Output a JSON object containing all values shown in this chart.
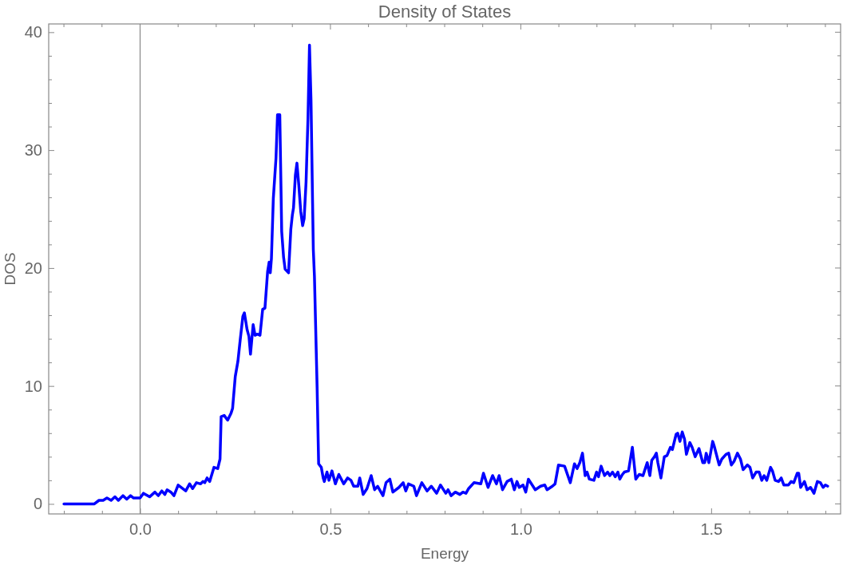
{
  "chart_data": {
    "type": "line",
    "title": "Density of States",
    "xlabel": "Energy",
    "ylabel": "DOS",
    "xlim": [
      -0.24,
      1.84
    ],
    "ylim": [
      -0.85,
      40.7
    ],
    "xticks": [
      {
        "value": -0.2,
        "label": null
      },
      {
        "value": -0.1,
        "label": null
      },
      {
        "value": 0,
        "label": "0.0"
      },
      {
        "value": 0.1,
        "label": null
      },
      {
        "value": 0.2,
        "label": null
      },
      {
        "value": 0.3,
        "label": null
      },
      {
        "value": 0.4,
        "label": null
      },
      {
        "value": 0.5,
        "label": "0.5"
      },
      {
        "value": 0.6,
        "label": null
      },
      {
        "value": 0.7,
        "label": null
      },
      {
        "value": 0.8,
        "label": null
      },
      {
        "value": 0.9,
        "label": null
      },
      {
        "value": 1.0,
        "label": "1.0"
      },
      {
        "value": 1.1,
        "label": null
      },
      {
        "value": 1.2,
        "label": null
      },
      {
        "value": 1.3,
        "label": null
      },
      {
        "value": 1.4,
        "label": null
      },
      {
        "value": 1.5,
        "label": "1.5"
      },
      {
        "value": 1.6,
        "label": null
      },
      {
        "value": 1.7,
        "label": null
      },
      {
        "value": 1.8,
        "label": null
      }
    ],
    "yticks": [
      0,
      {
        "value": 2,
        "label": null
      },
      {
        "value": 4,
        "label": null
      },
      {
        "value": 6,
        "label": null
      },
      {
        "value": 8,
        "label": null
      },
      10,
      {
        "value": 12,
        "label": null
      },
      {
        "value": 14,
        "label": null
      },
      {
        "value": 16,
        "label": null
      },
      {
        "value": 18,
        "label": null
      },
      20,
      {
        "value": 22,
        "label": null
      },
      {
        "value": 24,
        "label": null
      },
      {
        "value": 26,
        "label": null
      },
      {
        "value": 28,
        "label": null
      },
      30,
      {
        "value": 32,
        "label": null
      },
      {
        "value": 34,
        "label": null
      },
      {
        "value": 36,
        "label": null
      },
      {
        "value": 38,
        "label": null
      },
      40
    ],
    "ref_lines": [
      {
        "axis": "x",
        "value": 0,
        "color": "#777777"
      }
    ],
    "x": [
      -0.2,
      -0.12,
      -0.108,
      -0.097,
      -0.087,
      -0.076,
      -0.066,
      -0.057,
      -0.045,
      -0.035,
      -0.025,
      -0.017,
      0.0,
      0.009,
      0.025,
      0.039,
      0.048,
      0.057,
      0.065,
      0.071,
      0.081,
      0.089,
      0.1,
      0.12,
      0.13,
      0.138,
      0.148,
      0.159,
      0.165,
      0.17,
      0.176,
      0.183,
      0.194,
      0.204,
      0.21,
      0.213,
      0.221,
      0.23,
      0.239,
      0.243,
      0.25,
      0.257,
      0.263,
      0.27,
      0.274,
      0.281,
      0.286,
      0.29,
      0.297,
      0.302,
      0.308,
      0.315,
      0.322,
      0.328,
      0.335,
      0.339,
      0.342,
      0.345,
      0.35,
      0.357,
      0.361,
      0.367,
      0.372,
      0.377,
      0.381,
      0.39,
      0.396,
      0.4,
      0.403,
      0.408,
      0.412,
      0.417,
      0.422,
      0.427,
      0.431,
      0.436,
      0.441,
      0.445,
      0.449,
      0.455,
      0.458,
      0.465,
      0.469,
      0.476,
      0.481,
      0.484,
      0.491,
      0.496,
      0.504,
      0.513,
      0.522,
      0.535,
      0.545,
      0.554,
      0.561,
      0.572,
      0.577,
      0.586,
      0.596,
      0.607,
      0.616,
      0.624,
      0.638,
      0.646,
      0.656,
      0.664,
      0.68,
      0.691,
      0.698,
      0.705,
      0.719,
      0.726,
      0.74,
      0.754,
      0.765,
      0.779,
      0.789,
      0.803,
      0.809,
      0.817,
      0.828,
      0.84,
      0.848,
      0.856,
      0.863,
      0.877,
      0.895,
      0.902,
      0.914,
      0.926,
      0.936,
      0.943,
      0.952,
      0.964,
      0.975,
      0.983,
      0.99,
      0.996,
      1.006,
      1.013,
      1.02,
      1.038,
      1.052,
      1.063,
      1.069,
      1.083,
      1.09,
      1.099,
      1.115,
      1.13,
      1.141,
      1.148,
      1.155,
      1.162,
      1.169,
      1.174,
      1.18,
      1.192,
      1.199,
      1.204,
      1.211,
      1.22,
      1.228,
      1.234,
      1.241,
      1.248,
      1.255,
      1.26,
      1.267,
      1.272,
      1.283,
      1.288,
      1.293,
      1.302,
      1.311,
      1.321,
      1.328,
      1.332,
      1.339,
      1.344,
      1.351,
      1.356,
      1.36,
      1.368,
      1.377,
      1.384,
      1.393,
      1.398,
      1.408,
      1.412,
      1.418,
      1.424,
      1.43,
      1.435,
      1.444,
      1.45,
      1.458,
      1.468,
      1.478,
      1.483,
      1.487,
      1.494,
      1.504,
      1.508,
      1.521,
      1.528,
      1.539,
      1.546,
      1.553,
      1.56,
      1.569,
      1.577,
      1.584,
      1.595,
      1.602,
      1.609,
      1.618,
      1.626,
      1.633,
      1.639,
      1.646,
      1.656,
      1.661,
      1.668,
      1.677,
      1.684,
      1.691,
      1.703,
      1.71,
      1.717,
      1.726,
      1.73,
      1.735,
      1.745,
      1.752,
      1.761,
      1.77,
      1.779,
      1.787,
      1.794,
      1.8,
      1.806
    ],
    "series": [
      {
        "color": "#0000ff",
        "values": [
          0,
          0,
          0.3,
          0.3,
          0.5,
          0.3,
          0.6,
          0.3,
          0.7,
          0.4,
          0.7,
          0.5,
          0.5,
          0.9,
          0.6,
          1.0,
          0.7,
          1.1,
          0.8,
          1.2,
          1.0,
          0.7,
          1.6,
          1.1,
          1.7,
          1.3,
          1.8,
          1.7,
          1.9,
          1.8,
          2.2,
          1.9,
          3.1,
          3.0,
          3.8,
          7.4,
          7.5,
          7.1,
          7.7,
          8.1,
          10.8,
          12.1,
          13.9,
          15.9,
          16.2,
          14.8,
          14.2,
          12.7,
          15.2,
          14.3,
          14.4,
          14.3,
          16.5,
          16.6,
          19.7,
          20.5,
          19.6,
          20.8,
          25.9,
          29.3,
          33.0,
          33.0,
          23.1,
          20.9,
          19.9,
          19.6,
          23.3,
          24.5,
          25.1,
          27.9,
          28.9,
          27.0,
          24.8,
          23.6,
          24.2,
          27.3,
          32.7,
          38.9,
          34.2,
          21.6,
          19.3,
          9.9,
          3.4,
          3.1,
          2.2,
          1.9,
          2.7,
          2.0,
          2.8,
          1.7,
          2.5,
          1.7,
          2.2,
          2.0,
          1.5,
          1.5,
          2.2,
          0.8,
          1.3,
          2.4,
          1.2,
          1.5,
          0.7,
          1.8,
          2.1,
          1.0,
          1.4,
          1.8,
          1.1,
          1.7,
          1.5,
          0.7,
          1.8,
          1.1,
          1.5,
          0.9,
          1.6,
          0.9,
          1.2,
          0.7,
          1.0,
          0.8,
          1.0,
          0.9,
          1.3,
          1.8,
          1.7,
          2.6,
          1.4,
          2.4,
          1.7,
          2.4,
          1.2,
          1.9,
          2.1,
          1.2,
          1.9,
          1.4,
          1.6,
          1.0,
          2.1,
          1.2,
          1.5,
          1.6,
          1.2,
          1.5,
          1.7,
          3.3,
          3.2,
          1.8,
          3.4,
          3.0,
          3.5,
          4.3,
          2.4,
          2.7,
          2.1,
          2.0,
          2.7,
          2.3,
          3.2,
          2.4,
          2.7,
          2.4,
          2.7,
          2.3,
          2.7,
          2.1,
          2.5,
          2.7,
          2.8,
          3.8,
          4.8,
          2.1,
          2.5,
          2.4,
          3.1,
          3.5,
          2.4,
          3.7,
          4.0,
          4.3,
          3.5,
          2.2,
          4.0,
          4.1,
          4.8,
          4.6,
          5.9,
          6.0,
          5.3,
          6.1,
          5.5,
          4.2,
          5.2,
          4.8,
          4.0,
          4.7,
          3.5,
          3.5,
          4.3,
          3.5,
          5.3,
          4.9,
          3.3,
          3.8,
          4.2,
          4.3,
          3.3,
          3.6,
          4.3,
          3.8,
          2.9,
          3.3,
          3.1,
          2.2,
          2.7,
          2.7,
          2.0,
          2.4,
          2.0,
          3.1,
          2.8,
          2.0,
          1.9,
          2.2,
          1.6,
          1.6,
          1.9,
          1.8,
          2.6,
          2.6,
          1.4,
          1.9,
          1.2,
          1.4,
          0.9,
          1.9,
          1.8,
          1.4,
          1.6,
          1.5
        ]
      }
    ]
  }
}
